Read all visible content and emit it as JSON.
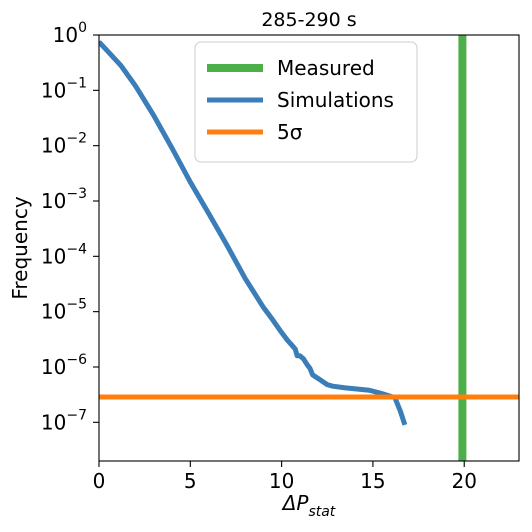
{
  "chart_data": {
    "type": "line",
    "title": "285-290 s",
    "xlabel": "ΔP",
    "xlabel_subscript": "stat",
    "ylabel": "Frequency",
    "xlim": [
      0,
      23
    ],
    "ylim": [
      2e-08,
      1
    ],
    "yscale": "log",
    "xticks": [
      0,
      5,
      10,
      15,
      20
    ],
    "xtick_labels": [
      "0",
      "5",
      "10",
      "15",
      "20"
    ],
    "yticks": [
      {
        "value": 1,
        "base": "10",
        "exp": "0"
      },
      {
        "value": 0.1,
        "base": "10",
        "exp": "−1"
      },
      {
        "value": 0.01,
        "base": "10",
        "exp": "−2"
      },
      {
        "value": 0.001,
        "base": "10",
        "exp": "−3"
      },
      {
        "value": 0.0001,
        "base": "10",
        "exp": "−4"
      },
      {
        "value": 1e-05,
        "base": "10",
        "exp": "−5"
      },
      {
        "value": 1e-06,
        "base": "10",
        "exp": "−6"
      },
      {
        "value": 1e-07,
        "base": "10",
        "exp": "−7"
      }
    ],
    "legend_position": "top-center",
    "series": [
      {
        "name": "Measured",
        "kind": "vline",
        "color": "#4daf4a",
        "x": 19.9
      },
      {
        "name": "Simulations",
        "kind": "line",
        "color": "#3a7db8",
        "points": [
          [
            0.0,
            0.75
          ],
          [
            0.5,
            0.5
          ],
          [
            1.2,
            0.28
          ],
          [
            2.0,
            0.12
          ],
          [
            3.0,
            0.035
          ],
          [
            4.0,
            0.009
          ],
          [
            5.0,
            0.0022
          ],
          [
            6.0,
            0.0006
          ],
          [
            7.0,
            0.00016
          ],
          [
            8.0,
            4e-05
          ],
          [
            9.0,
            1.2e-05
          ],
          [
            9.5,
            7.2e-06
          ],
          [
            10.0,
            4.2e-06
          ],
          [
            10.3,
            3.1e-06
          ],
          [
            10.6,
            2.4e-06
          ],
          [
            10.75,
            2.1e-06
          ],
          [
            10.85,
            1.6e-06
          ],
          [
            11.0,
            1.6e-06
          ],
          [
            11.2,
            1.4e-06
          ],
          [
            11.4,
            1.1e-06
          ],
          [
            11.55,
            9.5e-07
          ],
          [
            11.7,
            7.2e-07
          ],
          [
            12.0,
            6.2e-07
          ],
          [
            12.5,
            4.8e-07
          ],
          [
            12.8,
            4.5e-07
          ],
          [
            13.5,
            4.2e-07
          ],
          [
            14.8,
            3.8e-07
          ],
          [
            15.5,
            3.3e-07
          ],
          [
            16.2,
            2.8e-07
          ],
          [
            16.5,
            1.6e-07
          ],
          [
            16.75,
            9e-08
          ]
        ]
      },
      {
        "name": "5σ",
        "kind": "hline",
        "color": "#ff7f0e",
        "y": 2.87e-07
      }
    ]
  }
}
